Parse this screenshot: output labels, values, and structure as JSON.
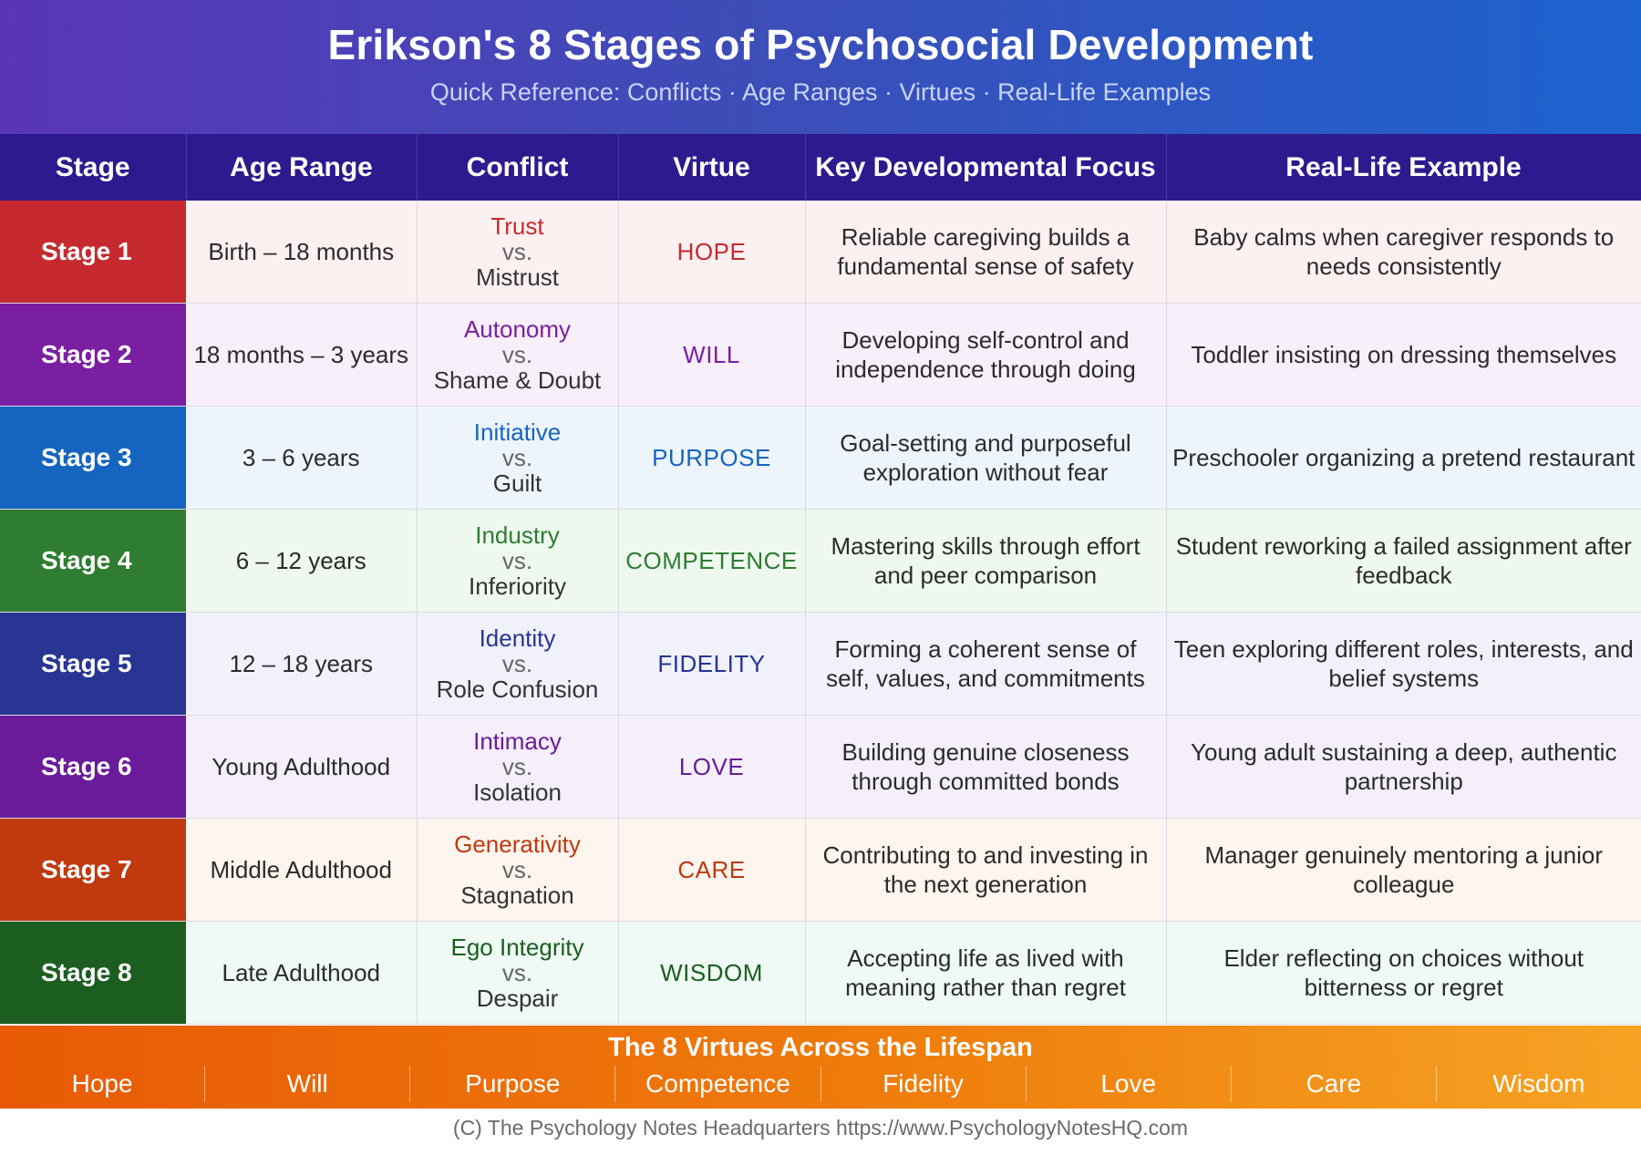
{
  "header": {
    "title": "Erikson's 8 Stages of Psychosocial Development",
    "subtitle": "Quick Reference: Conflicts · Age Ranges · Virtues · Real-Life Examples"
  },
  "columns": [
    "Stage",
    "Age Range",
    "Conflict",
    "Virtue",
    "Key Developmental Focus",
    "Real-Life Example"
  ],
  "rows": [
    {
      "stage": "Stage 1",
      "age": "Birth – 18 months",
      "pos": "Trust",
      "vs": "vs.",
      "neg": "Mistrust",
      "virtue": "HOPE",
      "focus": "Reliable caregiving builds a fundamental sense of safety",
      "example": "Baby calms when caregiver responds to needs consistently",
      "color": "#c62a2f",
      "bg": "#fdf0f1",
      "accent": "#c62a2f"
    },
    {
      "stage": "Stage 2",
      "age": "18 months – 3 years",
      "pos": "Autonomy",
      "vs": "vs.",
      "neg": "Shame & Doubt",
      "virtue": "WILL",
      "focus": "Developing self-control and independence through doing",
      "example": "Toddler insisting on dressing themselves",
      "color": "#7b1fa2",
      "bg": "#f7effa",
      "accent": "#7b1fa2"
    },
    {
      "stage": "Stage 3",
      "age": "3 – 6 years",
      "pos": "Initiative",
      "vs": "vs.",
      "neg": "Guilt",
      "virtue": "PURPOSE",
      "focus": "Goal-setting and purposeful exploration without fear",
      "example": "Preschooler organizing a pretend restaurant",
      "color": "#1565c0",
      "bg": "#eef4fc",
      "accent": "#1565c0"
    },
    {
      "stage": "Stage 4",
      "age": "6 – 12 years",
      "pos": "Industry",
      "vs": "vs.",
      "neg": "Inferiority",
      "virtue": "COMPETENCE",
      "focus": "Mastering skills through effort and peer comparison",
      "example": "Student reworking a failed assignment after feedback",
      "color": "#2e7d32",
      "bg": "#eff8ef",
      "accent": "#2e7d32"
    },
    {
      "stage": "Stage 5",
      "age": "12 – 18 years",
      "pos": "Identity",
      "vs": "vs.",
      "neg": "Role Confusion",
      "virtue": "FIDELITY",
      "focus": "Forming a coherent sense of self, values, and commitments",
      "example": "Teen exploring different roles, interests, and belief systems",
      "color": "#283593",
      "bg": "#f0f1fa",
      "accent": "#283593"
    },
    {
      "stage": "Stage 6",
      "age": "Young Adulthood",
      "pos": "Intimacy",
      "vs": "vs.",
      "neg": "Isolation",
      "virtue": "LOVE",
      "focus": "Building genuine closeness through committed bonds",
      "example": "Young adult sustaining a deep, authentic partnership",
      "color": "#6a1b9a",
      "bg": "#f4effa",
      "accent": "#6a1b9a"
    },
    {
      "stage": "Stage 7",
      "age": "Middle Adulthood",
      "pos": "Generativity",
      "vs": "vs.",
      "neg": "Stagnation",
      "virtue": "CARE",
      "focus": "Contributing to and investing in the next generation",
      "example": "Manager genuinely mentoring a junior colleague",
      "color": "#c0390f",
      "bg": "#fdf5ee",
      "accent": "#c0390f"
    },
    {
      "stage": "Stage 8",
      "age": "Late Adulthood",
      "pos": "Ego Integrity",
      "vs": "vs.",
      "neg": "Despair",
      "virtue": "WISDOM",
      "focus": "Accepting life as lived with meaning rather than regret",
      "example": "Elder reflecting on choices without bitterness or regret",
      "color": "#1b5e20",
      "bg": "#eefaf3",
      "accent": "#1b5e20"
    }
  ],
  "band": {
    "title": "The 8 Virtues Across the Lifespan",
    "virtues": [
      "Hope",
      "Will",
      "Purpose",
      "Competence",
      "Fidelity",
      "Love",
      "Care",
      "Wisdom"
    ]
  },
  "footer": {
    "copyright": "(C) The Psychology Notes Headquarters  https://www.PsychologyNotesHQ.com"
  }
}
